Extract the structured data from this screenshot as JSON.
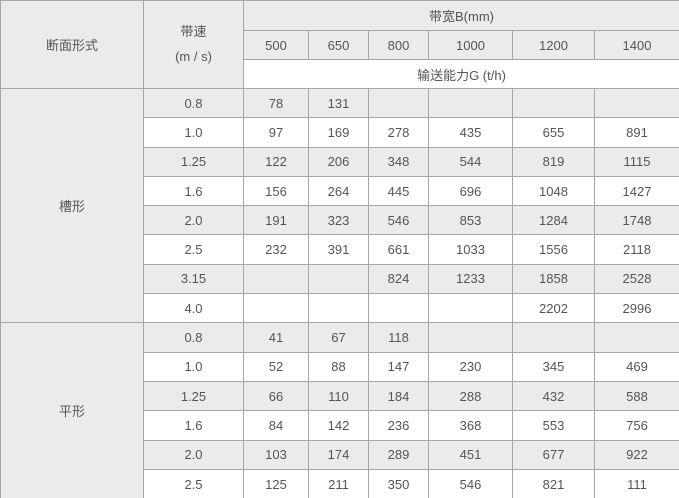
{
  "colors": {
    "stripe_bg": "#ebebeb",
    "plain_bg": "#ffffff",
    "border": "#a6a6a6",
    "outer_border": "#8d8d8d",
    "text": "#555555"
  },
  "table": {
    "corner_header": "断面形式",
    "speed_header_line1": "带速",
    "speed_header_line2": "(m / s)",
    "bandwidth_header": "带宽B(mm)",
    "capacity_header": "输送能力G (t/h)",
    "width_columns": [
      "500",
      "650",
      "800",
      "1000",
      "1200",
      "1400"
    ],
    "sections": [
      {
        "label": "槽形",
        "rows": [
          {
            "speed": "0.8",
            "values": [
              "78",
              "131",
              "",
              "",
              "",
              ""
            ]
          },
          {
            "speed": "1.0",
            "values": [
              "97",
              "169",
              "278",
              "435",
              "655",
              "891"
            ]
          },
          {
            "speed": "1.25",
            "values": [
              "122",
              "206",
              "348",
              "544",
              "819",
              "1115"
            ]
          },
          {
            "speed": "1.6",
            "values": [
              "156",
              "264",
              "445",
              "696",
              "1048",
              "1427"
            ]
          },
          {
            "speed": "2.0",
            "values": [
              "191",
              "323",
              "546",
              "853",
              "1284",
              "1748"
            ]
          },
          {
            "speed": "2.5",
            "values": [
              "232",
              "391",
              "661",
              "1033",
              "1556",
              "2118"
            ]
          },
          {
            "speed": "3.15",
            "values": [
              "",
              "",
              "824",
              "1233",
              "1858",
              "2528"
            ]
          },
          {
            "speed": "4.0",
            "values": [
              "",
              "",
              "",
              "",
              "2202",
              "2996"
            ]
          }
        ]
      },
      {
        "label": "平形",
        "rows": [
          {
            "speed": "0.8",
            "values": [
              "41",
              "67",
              "118",
              "",
              "",
              ""
            ]
          },
          {
            "speed": "1.0",
            "values": [
              "52",
              "88",
              "147",
              "230",
              "345",
              "469"
            ]
          },
          {
            "speed": "1.25",
            "values": [
              "66",
              "110",
              "184",
              "288",
              "432",
              "588"
            ]
          },
          {
            "speed": "1.6",
            "values": [
              "84",
              "142",
              "236",
              "368",
              "553",
              "756"
            ]
          },
          {
            "speed": "2.0",
            "values": [
              "103",
              "174",
              "289",
              "451",
              "677",
              "922"
            ]
          },
          {
            "speed": "2.5",
            "values": [
              "125",
              "211",
              "350",
              "546",
              "821",
              "111"
            ]
          }
        ]
      }
    ]
  }
}
